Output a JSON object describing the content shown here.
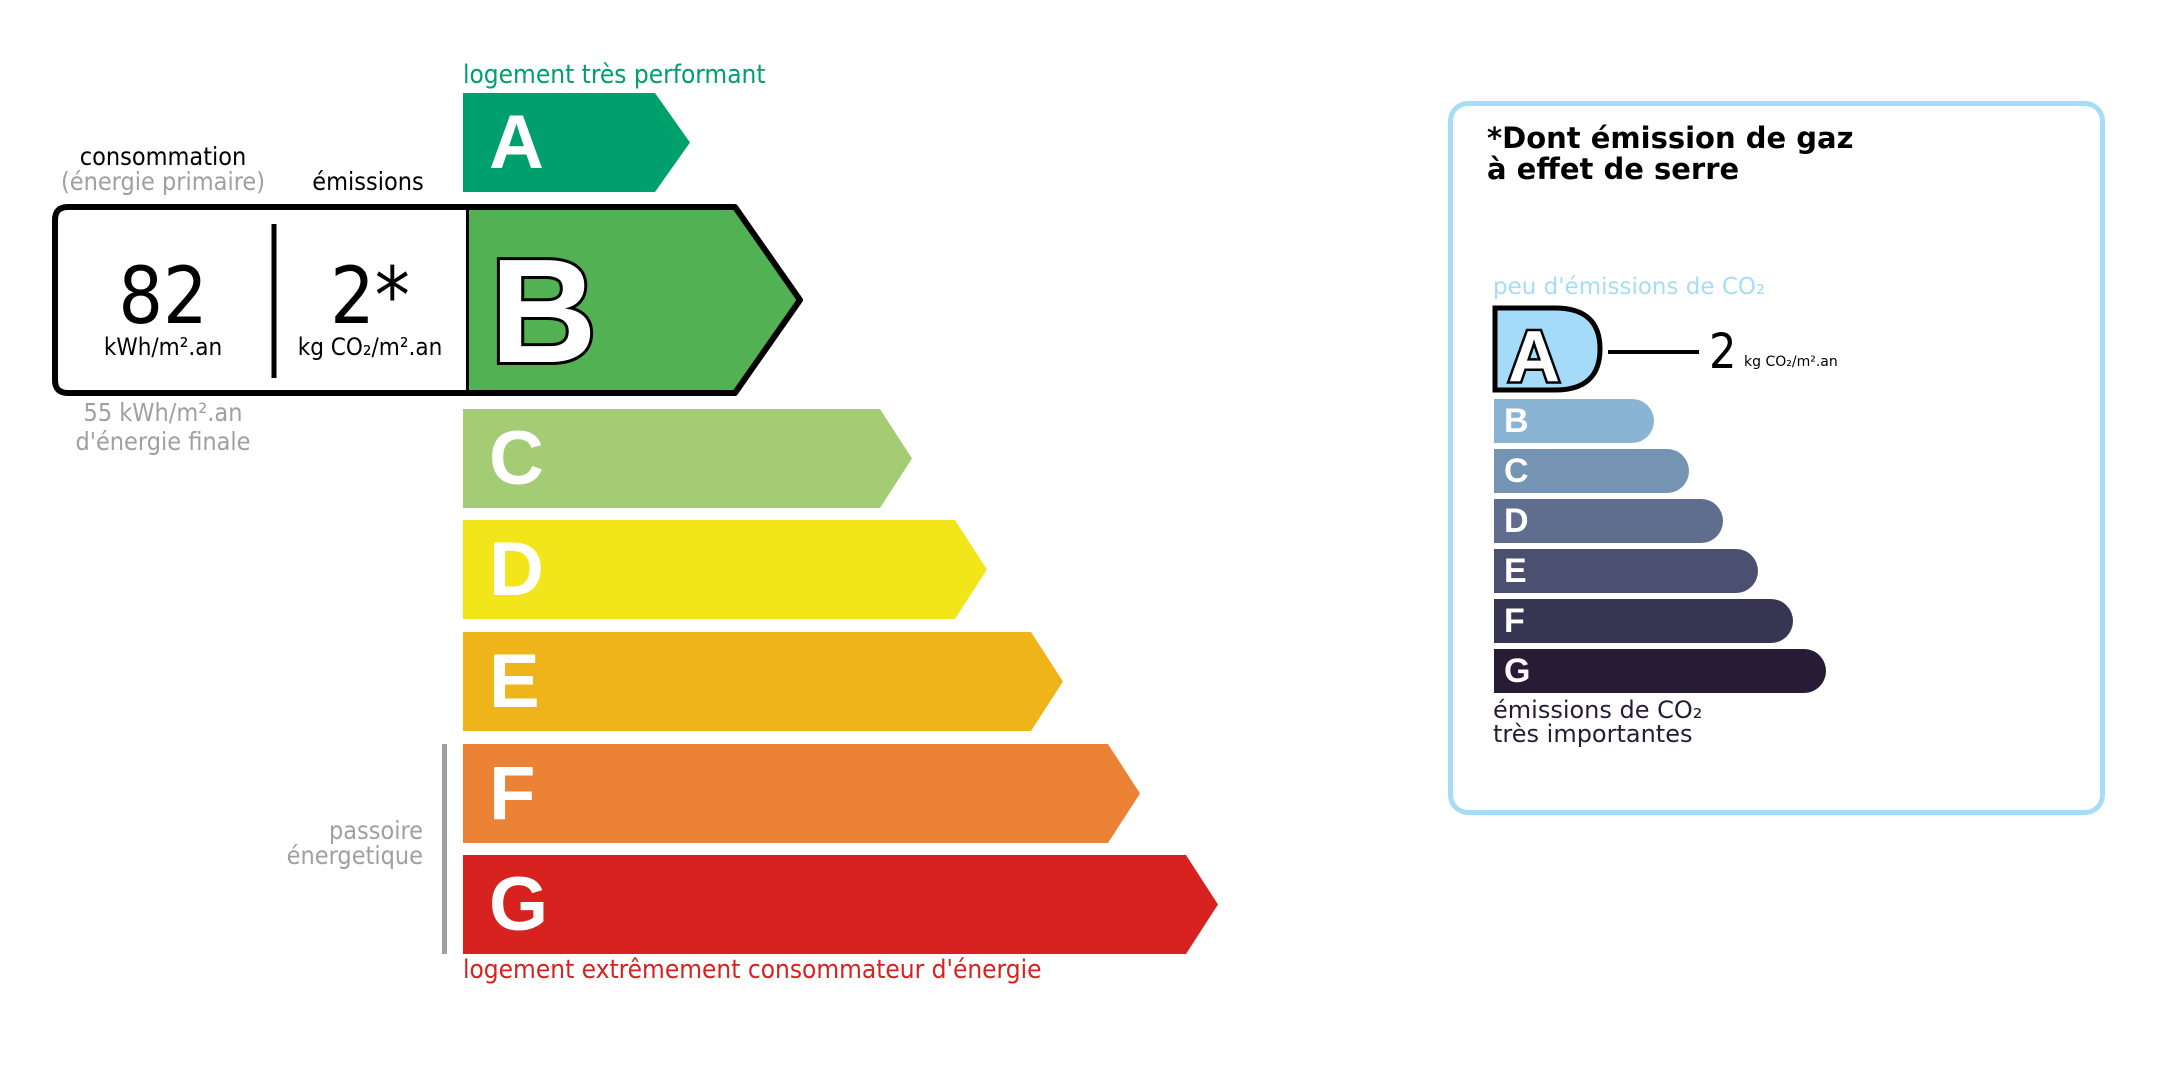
{
  "energy": {
    "top_label": "logement très performant",
    "bottom_label": "logement extrêmement consommateur d'énergie",
    "passoire_label_1": "passoire",
    "passoire_label_2": "énergetique",
    "current_class": "B",
    "classes": [
      {
        "letter": "A",
        "color": "#00a06d"
      },
      {
        "letter": "B",
        "color": "#51b153"
      },
      {
        "letter": "C",
        "color": "#a4cc74"
      },
      {
        "letter": "D",
        "color": "#f2e61b"
      },
      {
        "letter": "E",
        "color": "#efb41a"
      },
      {
        "letter": "F",
        "color": "#eb8235"
      },
      {
        "letter": "G",
        "color": "#d7221f"
      }
    ],
    "consumption_heading": "consommation",
    "consumption_subheading": "(énergie primaire)",
    "emissions_heading": "émissions",
    "consumption_value": "82",
    "consumption_unit": "kWh/m².an",
    "emissions_value": "2*",
    "emissions_unit": "kg CO₂/m².an",
    "final_energy_value": "55 kWh/m².an",
    "final_energy_label": "d'énergie finale"
  },
  "ghg": {
    "title_line1": "*Dont émission de gaz",
    "title_line2": "à effet de serre",
    "top_label": "peu d'émissions de CO₂",
    "bottom_label_1": "émissions de CO₂",
    "bottom_label_2": "très importantes",
    "current_class": "A",
    "value": "2",
    "unit": "kg CO₂/m².an",
    "border_color": "#a6dcf5",
    "classes": [
      {
        "letter": "A",
        "color": "#a4dbf8"
      },
      {
        "letter": "B",
        "color": "#8ab4d4"
      },
      {
        "letter": "C",
        "color": "#7593b3"
      },
      {
        "letter": "D",
        "color": "#5f6d8f"
      },
      {
        "letter": "E",
        "color": "#4b5070"
      },
      {
        "letter": "F",
        "color": "#383552"
      },
      {
        "letter": "G",
        "color": "#281b35"
      }
    ]
  }
}
